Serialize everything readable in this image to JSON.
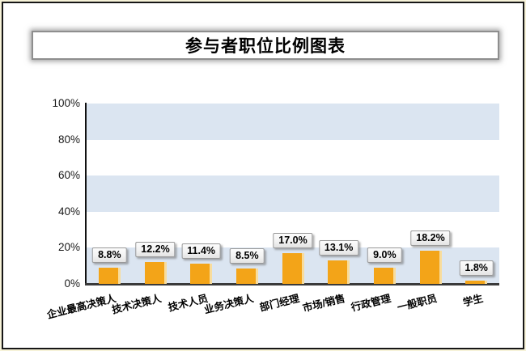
{
  "title": "参与者职位比例图表",
  "colors": {
    "bar": "#f3a418",
    "bar_edge_highlight": "#f8dc9c",
    "band": "#dbe5f1",
    "axis": "#3a3a3a",
    "frame_border": "#161616"
  },
  "chart_data": {
    "type": "bar",
    "title": "参与者职位比例图表",
    "categories": [
      "企业最高决策人",
      "技术决策人",
      "技术人员",
      "业务决策人",
      "部门经理",
      "市场/销售",
      "行政管理",
      "一般职员",
      "学生"
    ],
    "values": [
      8.8,
      12.2,
      11.4,
      8.5,
      17.0,
      13.1,
      9.0,
      18.2,
      1.8
    ],
    "value_labels": [
      "8.8%",
      "12.2%",
      "11.4%",
      "8.5%",
      "17.0%",
      "13.1%",
      "9.0%",
      "18.2%",
      "1.8%"
    ],
    "xlabel": "",
    "ylabel": "",
    "ylim": [
      0,
      100
    ],
    "yticks": [
      100,
      80,
      60,
      40,
      20,
      0
    ],
    "ytick_labels": [
      "100%",
      "80%",
      "60%",
      "40%",
      "20%",
      "0%"
    ],
    "grid": "alternating horizontal bands (20% steps), shaded: 80-100, 40-60, 0-20",
    "legend": "none"
  }
}
